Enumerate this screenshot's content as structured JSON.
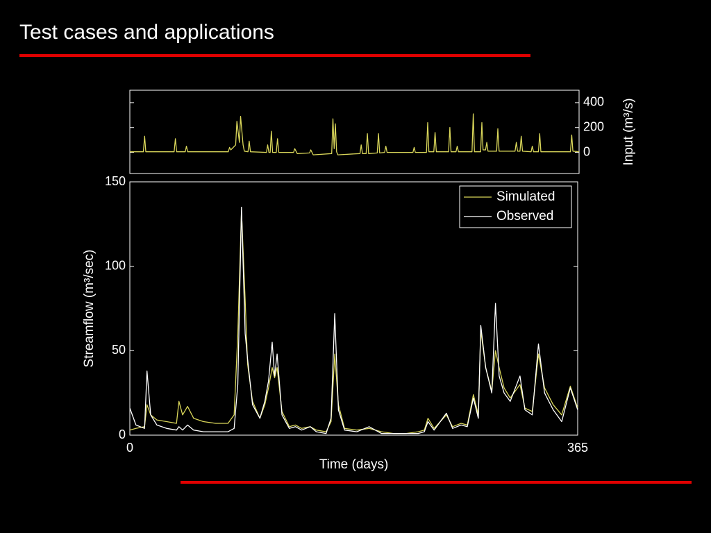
{
  "slide_title": "Test cases and applications",
  "chart_data": [
    {
      "type": "line",
      "ylabel": "Input (m³/s)",
      "y_axis_side": "right",
      "x": [
        0,
        11,
        12,
        13,
        36,
        37,
        38,
        45,
        46,
        47,
        80,
        81,
        82,
        86,
        87,
        89,
        90,
        92,
        93,
        96,
        97,
        98,
        111,
        112,
        113,
        114,
        115,
        116,
        119,
        120,
        121,
        133,
        134,
        136,
        146,
        147,
        149,
        164,
        165,
        166,
        167,
        168,
        169,
        187,
        188,
        189,
        192,
        193,
        194,
        201,
        202,
        203,
        207,
        208,
        209,
        230,
        231,
        232,
        241,
        242,
        243,
        247,
        248,
        249,
        259,
        260,
        261,
        265,
        266,
        267,
        278,
        279,
        280,
        285,
        286,
        287,
        289,
        290,
        291,
        298,
        299,
        300,
        313,
        314,
        315,
        317,
        318,
        319,
        326,
        327,
        328,
        332,
        333,
        334,
        358,
        359,
        360,
        365
      ],
      "series": [
        {
          "color": "#d9d65a",
          "values": [
            5,
            5,
            130,
            5,
            5,
            110,
            5,
            5,
            50,
            5,
            5,
            40,
            20,
            60,
            250,
            80,
            290,
            60,
            10,
            5,
            90,
            5,
            0,
            60,
            0,
            0,
            170,
            0,
            0,
            110,
            0,
            0,
            30,
            -10,
            -5,
            20,
            -20,
            -10,
            270,
            30,
            230,
            5,
            -20,
            -10,
            60,
            -10,
            -10,
            150,
            -10,
            -5,
            150,
            -5,
            0,
            50,
            0,
            0,
            40,
            0,
            0,
            240,
            5,
            5,
            160,
            5,
            5,
            200,
            5,
            5,
            50,
            5,
            5,
            310,
            5,
            5,
            240,
            20,
            20,
            80,
            10,
            10,
            190,
            10,
            10,
            80,
            10,
            10,
            130,
            10,
            5,
            50,
            5,
            5,
            150,
            5,
            5,
            140,
            10,
            5
          ]
        }
      ],
      "xlim": [
        0,
        365
      ],
      "ylim": [
        -170,
        500
      ],
      "yticks": [
        0,
        200,
        400
      ]
    },
    {
      "type": "line",
      "xlabel": "Time (days)",
      "ylabel": "Streamflow (m³/sec)",
      "x": [
        0,
        5,
        12,
        14,
        17,
        22,
        30,
        38,
        40,
        43,
        47,
        52,
        60,
        70,
        80,
        85,
        88,
        91,
        94,
        96,
        100,
        106,
        110,
        113,
        116,
        118,
        120,
        124,
        130,
        135,
        140,
        147,
        152,
        160,
        164,
        167,
        170,
        175,
        185,
        195,
        205,
        215,
        225,
        235,
        240,
        243,
        248,
        258,
        263,
        270,
        275,
        280,
        284,
        286,
        290,
        295,
        298,
        301,
        305,
        310,
        318,
        322,
        328,
        333,
        338,
        345,
        352,
        359,
        365
      ],
      "series": [
        {
          "name": "Simulated",
          "color": "#d9d65a",
          "values": [
            3,
            4,
            5,
            18,
            12,
            9,
            8,
            7,
            20,
            12,
            17,
            10,
            8,
            7,
            7,
            12,
            60,
            133,
            80,
            42,
            20,
            10,
            18,
            28,
            40,
            34,
            40,
            14,
            5,
            6,
            4,
            5,
            3,
            2,
            8,
            48,
            18,
            4,
            3,
            4,
            2,
            1,
            1,
            2,
            3,
            10,
            4,
            12,
            5,
            7,
            6,
            24,
            12,
            62,
            40,
            26,
            50,
            40,
            28,
            22,
            30,
            16,
            14,
            48,
            28,
            18,
            12,
            29,
            16
          ]
        },
        {
          "name": "Observed",
          "color": "#ffffff",
          "values": [
            16,
            6,
            4,
            38,
            12,
            6,
            4,
            3,
            5,
            3,
            6,
            3,
            2,
            2,
            2,
            4,
            30,
            135,
            60,
            45,
            18,
            10,
            20,
            32,
            55,
            35,
            48,
            12,
            4,
            5,
            3,
            5,
            2,
            1,
            10,
            72,
            15,
            3,
            2,
            5,
            1,
            1,
            1,
            1,
            2,
            8,
            3,
            13,
            4,
            6,
            5,
            22,
            10,
            65,
            40,
            25,
            78,
            35,
            25,
            20,
            35,
            15,
            12,
            54,
            25,
            15,
            8,
            28,
            15
          ]
        }
      ],
      "legend": "upper right",
      "xlim": [
        0,
        365
      ],
      "xticks": [
        0,
        365
      ],
      "ylim": [
        0,
        150
      ],
      "yticks": [
        0,
        50,
        100,
        150
      ]
    }
  ]
}
